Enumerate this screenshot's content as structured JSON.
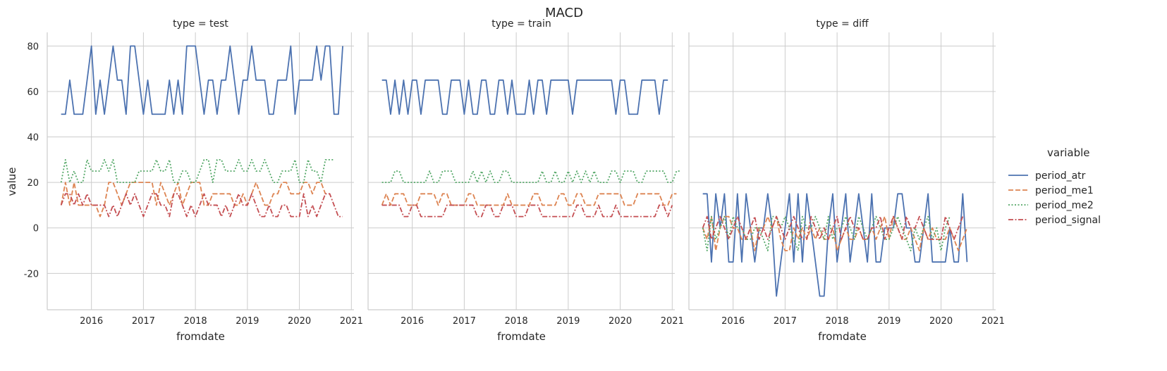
{
  "chart_data": {
    "type": "line",
    "title": "MACD",
    "xlabel": "fromdate",
    "ylabel": "value",
    "ylim": [
      -36,
      86
    ],
    "yticks": [
      -20,
      0,
      20,
      40,
      60,
      80
    ],
    "xlim": [
      2015.15,
      2021.05
    ],
    "xticks": [
      2016,
      2017,
      2018,
      2019,
      2020,
      2021
    ],
    "grid": true,
    "legend": {
      "title": "variable",
      "placement": "right",
      "entries": [
        {
          "name": "period_atr",
          "color": "#4c72b0",
          "dash": ""
        },
        {
          "name": "period_me1",
          "color": "#dd8452",
          "dash": "7,3"
        },
        {
          "name": "period_me2",
          "color": "#55a868",
          "dash": "2,2.5"
        },
        {
          "name": "period_signal",
          "color": "#c44e52",
          "dash": "7,2.5,2,2.5"
        }
      ]
    },
    "x_start": 2015.4167,
    "x_step_months": 1,
    "panels": [
      {
        "title": "type = test",
        "series": {
          "period_atr": [
            50,
            50,
            65,
            50,
            50,
            50,
            65,
            80,
            50,
            65,
            50,
            65,
            80,
            65,
            65,
            50,
            80,
            80,
            65,
            50,
            65,
            50,
            50,
            50,
            50,
            65,
            50,
            65,
            50,
            80,
            80,
            80,
            65,
            50,
            65,
            65,
            50,
            65,
            65,
            80,
            65,
            50,
            65,
            65,
            80,
            65,
            65,
            65,
            50,
            50,
            65,
            65,
            65,
            80,
            50,
            65,
            65,
            65,
            65,
            80,
            65,
            80,
            80,
            50,
            50,
            80
          ],
          "period_me1": [
            10,
            20,
            10,
            20,
            10,
            10,
            10,
            10,
            10,
            5,
            10,
            20,
            20,
            15,
            10,
            15,
            20,
            20,
            20,
            20,
            20,
            20,
            10,
            20,
            15,
            10,
            15,
            20,
            10,
            15,
            20,
            20,
            20,
            10,
            10,
            15,
            15,
            15,
            15,
            15,
            10,
            10,
            15,
            10,
            15,
            20,
            15,
            10,
            10,
            15,
            15,
            20,
            20,
            15,
            15,
            15,
            20,
            20,
            15,
            20,
            20,
            15
          ],
          "period_me2": [
            20,
            30,
            20,
            25,
            20,
            20,
            30,
            25,
            25,
            25,
            30,
            25,
            30,
            20,
            20,
            20,
            20,
            20,
            25,
            25,
            25,
            25,
            30,
            25,
            25,
            30,
            20,
            20,
            25,
            25,
            20,
            20,
            25,
            30,
            30,
            20,
            30,
            30,
            25,
            25,
            25,
            30,
            25,
            25,
            30,
            25,
            25,
            30,
            25,
            20,
            20,
            25,
            25,
            25,
            30,
            20,
            20,
            30,
            25,
            25,
            20,
            30,
            30,
            30
          ],
          "period_signal": [
            10,
            15,
            15,
            10,
            15,
            10,
            15,
            10,
            10,
            10,
            10,
            5,
            10,
            5,
            10,
            15,
            10,
            15,
            10,
            5,
            10,
            15,
            15,
            10,
            10,
            5,
            15,
            15,
            10,
            5,
            10,
            5,
            10,
            15,
            10,
            10,
            10,
            5,
            10,
            5,
            10,
            15,
            10,
            10,
            15,
            10,
            5,
            5,
            10,
            5,
            5,
            10,
            10,
            5,
            5,
            5,
            15,
            5,
            10,
            5,
            10,
            15,
            15,
            10,
            5,
            5
          ]
        }
      },
      {
        "title": "type = train",
        "series": {
          "period_atr": [
            65,
            65,
            50,
            65,
            50,
            65,
            50,
            65,
            65,
            50,
            65,
            65,
            65,
            65,
            50,
            50,
            65,
            65,
            65,
            50,
            65,
            50,
            50,
            65,
            65,
            50,
            50,
            65,
            65,
            50,
            65,
            50,
            50,
            50,
            65,
            50,
            65,
            65,
            50,
            65,
            65,
            65,
            65,
            65,
            50,
            65,
            65,
            65,
            65,
            65,
            65,
            65,
            65,
            65,
            50,
            65,
            65,
            50,
            50,
            50,
            65,
            65,
            65,
            65,
            50,
            65,
            65
          ],
          "period_me1": [
            10,
            15,
            10,
            15,
            15,
            15,
            10,
            10,
            10,
            15,
            15,
            15,
            15,
            10,
            15,
            15,
            10,
            10,
            10,
            10,
            15,
            15,
            10,
            10,
            10,
            10,
            10,
            10,
            10,
            15,
            10,
            10,
            10,
            10,
            10,
            15,
            15,
            10,
            10,
            10,
            10,
            15,
            15,
            10,
            10,
            15,
            15,
            10,
            10,
            10,
            15,
            15,
            15,
            15,
            15,
            15,
            10,
            10,
            10,
            15,
            15,
            15,
            15,
            15,
            15,
            10,
            10,
            15,
            15
          ],
          "period_me2": [
            20,
            20,
            20,
            25,
            25,
            20,
            20,
            20,
            20,
            20,
            20,
            25,
            20,
            20,
            25,
            25,
            25,
            20,
            20,
            20,
            20,
            25,
            20,
            25,
            20,
            25,
            20,
            20,
            25,
            25,
            20,
            20,
            20,
            20,
            20,
            20,
            20,
            25,
            20,
            20,
            25,
            20,
            20,
            25,
            20,
            25,
            20,
            25,
            20,
            25,
            20,
            20,
            20,
            25,
            25,
            20,
            25,
            25,
            25,
            20,
            20,
            25,
            25,
            25,
            25,
            25,
            20,
            20,
            25,
            25
          ],
          "period_signal": [
            10,
            10,
            10,
            10,
            10,
            5,
            5,
            10,
            10,
            5,
            5,
            5,
            5,
            5,
            5,
            10,
            10,
            10,
            10,
            10,
            10,
            10,
            5,
            5,
            10,
            10,
            5,
            5,
            10,
            10,
            10,
            5,
            5,
            5,
            10,
            10,
            10,
            5,
            5,
            5,
            5,
            5,
            5,
            5,
            5,
            10,
            10,
            5,
            5,
            5,
            10,
            5,
            5,
            5,
            10,
            5,
            5,
            5,
            5,
            5,
            5,
            5,
            5,
            5,
            10,
            10,
            5,
            10
          ]
        }
      },
      {
        "title": "type = diff",
        "series": {
          "period_atr": [
            15,
            15,
            -15,
            15,
            0,
            15,
            -15,
            -15,
            15,
            -15,
            15,
            0,
            -15,
            0,
            0,
            15,
            0,
            -30,
            -15,
            0,
            15,
            -15,
            15,
            -15,
            15,
            0,
            -15,
            -30,
            -30,
            0,
            15,
            -15,
            0,
            15,
            -15,
            0,
            15,
            0,
            -15,
            15,
            -15,
            -15,
            0,
            0,
            0,
            15,
            15,
            0,
            0,
            -15,
            -15,
            0,
            15,
            -15,
            -15,
            -15,
            -15,
            0,
            -15,
            -15,
            15,
            -15
          ],
          "period_me1": [
            0,
            -5,
            5,
            -10,
            0,
            5,
            5,
            0,
            0,
            -5,
            -5,
            0,
            -10,
            0,
            0,
            5,
            0,
            5,
            -5,
            -10,
            -10,
            0,
            -5,
            0,
            -5,
            0,
            -5,
            0,
            -5,
            -5,
            0,
            -10,
            -5,
            0,
            -5,
            -5,
            0,
            -5,
            -5,
            0,
            -5,
            0,
            5,
            -5,
            5,
            0,
            -5,
            -5,
            0,
            -5,
            -10,
            0,
            -5,
            0,
            -5,
            -5,
            -5,
            0,
            -5,
            -10,
            -5,
            0
          ],
          "period_me2": [
            0,
            -10,
            5,
            -5,
            0,
            5,
            -5,
            5,
            0,
            0,
            -5,
            -5,
            0,
            0,
            -5,
            -10,
            5,
            5,
            0,
            5,
            0,
            -5,
            -10,
            5,
            0,
            0,
            5,
            0,
            -5,
            5,
            -5,
            0,
            0,
            5,
            0,
            -5,
            5,
            0,
            -5,
            0,
            5,
            0,
            -5,
            -5,
            0,
            5,
            0,
            -5,
            -10,
            0,
            -5,
            0,
            5,
            -5,
            0,
            -10,
            0,
            5
          ],
          "period_signal": [
            0,
            5,
            -5,
            0,
            5,
            0,
            -5,
            0,
            5,
            0,
            -5,
            0,
            5,
            -5,
            0,
            -5,
            0,
            5,
            0,
            -5,
            0,
            5,
            0,
            -5,
            -5,
            5,
            0,
            -5,
            0,
            -5,
            0,
            5,
            -5,
            0,
            5,
            0,
            0,
            -5,
            -5,
            0,
            0,
            5,
            -5,
            0,
            5,
            0,
            -5,
            5,
            0,
            0,
            5,
            0,
            -5,
            -5,
            -5,
            -5,
            5,
            0,
            -5,
            0,
            5
          ]
        }
      }
    ]
  }
}
